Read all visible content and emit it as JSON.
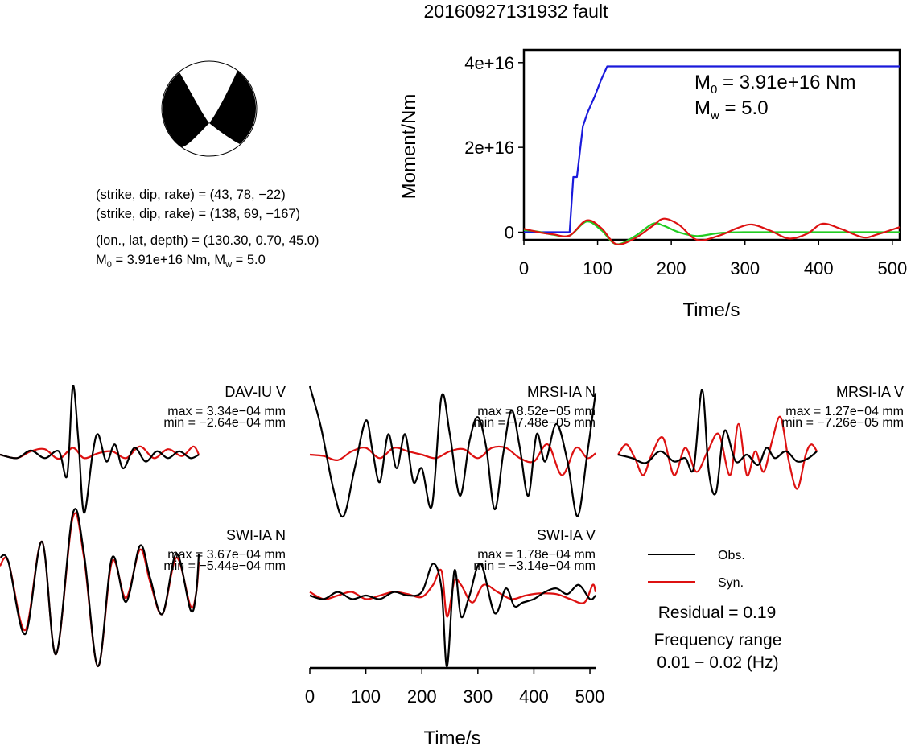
{
  "title": "20160927131932 fault",
  "info": {
    "line1": "(strike, dip, rake) = (43, 78, −22)",
    "line2": "(strike, dip, rake) = (138, 69, −167)",
    "line3": "(lon., lat, depth) = (130.30, 0.70, 45.0)",
    "line4": "M0 = 3.91e+16 Nm, Mw = 5.0"
  },
  "colors": {
    "obs": "#000000",
    "syn": "#dd1111",
    "moment": "#1a1adb",
    "green": "#22cc22"
  },
  "chart_data": [
    {
      "id": "moment",
      "type": "line",
      "ylabel": "Moment/Nm",
      "xlabel": "Time/s",
      "xlim": [
        0,
        510
      ],
      "ylim": [
        -1800000000000000.0,
        4.3e+16
      ],
      "xticks": [
        "0",
        "100",
        "200",
        "300",
        "400",
        "500"
      ],
      "yticks": [
        "0",
        "2e+16",
        "4e+16"
      ],
      "annotations": [
        "M0 = 3.91e+16 Nm",
        "Mw = 5.0"
      ],
      "series": [
        {
          "color": "blue",
          "x": [
            0,
            62,
            67,
            72,
            80,
            87,
            96,
            105,
            113,
            120,
            510
          ],
          "y": [
            0,
            0,
            1.3e+16,
            1.3e+16,
            2.5e+16,
            2.85e+16,
            3.2e+16,
            3.6e+16,
            3.91e+16,
            3.91e+16,
            3.91e+16
          ]
        },
        {
          "color": "green",
          "x": [
            0,
            20,
            40,
            62,
            85,
            105,
            125,
            150,
            175,
            190,
            210,
            235,
            265,
            300,
            350,
            400,
            450,
            510
          ],
          "y": [
            500000000000000.0,
            100000000000000.0,
            -600000000000000.0,
            -800000000000000.0,
            2500000000000000.0,
            500000000000000.0,
            -2800000000000000.0,
            -1000000000000000.0,
            2000000000000000.0,
            1500000000000000.0,
            0.0,
            -900000000000000.0,
            -200000000000000.0,
            0.0,
            0.0,
            0.0,
            0.0,
            0.0
          ]
        },
        {
          "color": "red",
          "x": [
            0,
            20,
            40,
            62,
            85,
            105,
            125,
            150,
            175,
            190,
            210,
            235,
            265,
            290,
            310,
            335,
            360,
            385,
            405,
            430,
            460,
            480,
            510
          ],
          "y": [
            800000000000000.0,
            0.0,
            -500000000000000.0,
            -800000000000000.0,
            2800000000000000.0,
            1000000000000000.0,
            -2800000000000000.0,
            -1500000000000000.0,
            1500000000000000.0,
            3200000000000000.0,
            1800000000000000.0,
            -1800000000000000.0,
            -800000000000000.0,
            1000000000000000.0,
            1800000000000000.0,
            300000000000000.0,
            -1500000000000000.0,
            -300000000000000.0,
            2000000000000000.0,
            800000000000000.0,
            -1200000000000000.0,
            -500000000000000.0,
            1200000000000000.0
          ]
        }
      ]
    },
    {
      "id": "waveforms",
      "type": "line",
      "xlabel": "Time/s",
      "xlim": [
        0,
        510
      ],
      "xticks": [
        "0",
        "100",
        "200",
        "300",
        "400",
        "500"
      ],
      "panels": [
        {
          "station": "DAV-IU V",
          "max": "max = 3.34e−04 mm",
          "min": "min = −2.64e−04 mm",
          "obs": {
            "x": [
              0,
              30,
              55,
              80,
              105,
              120,
              130,
              140,
              150,
              165,
              175,
              190,
              205,
              220,
              240,
              260,
              280,
              300,
              320,
              340,
              355
            ],
            "y": [
              0,
              -0.05,
              0.06,
              -0.05,
              0.05,
              -0.3,
              1.0,
              0.2,
              -0.85,
              0.0,
              0.3,
              -0.1,
              0.15,
              -0.2,
              0.1,
              -0.1,
              0.05,
              -0.05,
              0.05,
              -0.05,
              0
            ]
          },
          "syn": {
            "x": [
              0,
              30,
              55,
              80,
              105,
              130,
              150,
              175,
              200,
              225,
              250,
              275,
              300,
              325,
              345,
              355
            ],
            "y": [
              0,
              -0.05,
              0.05,
              0.08,
              -0.06,
              0.1,
              -0.05,
              0.02,
              0.05,
              -0.05,
              0.12,
              -0.05,
              0.08,
              -0.02,
              0.12,
              0
            ]
          }
        },
        {
          "station": "MRSI-IA N",
          "max": "max = 8.52e−05 mm",
          "min": "min = −7.48e−05 mm",
          "obs": {
            "x": [
              0,
              20,
              42,
              60,
              80,
              100,
              112,
              125,
              140,
              155,
              170,
              185,
              200,
              218,
              235,
              250,
              268,
              285,
              300,
              315,
              330,
              345,
              360,
              375,
              390,
              405,
              420,
              440,
              460,
              478,
              495,
              510
            ],
            "y": [
              1.0,
              0.4,
              -0.5,
              -0.9,
              -0.2,
              0.5,
              0.05,
              -0.4,
              0.3,
              -0.2,
              0.3,
              -0.4,
              -0.2,
              -0.75,
              0.85,
              0.3,
              -0.6,
              0.2,
              0.55,
              0.1,
              -0.8,
              0.0,
              0.65,
              0.1,
              -0.6,
              0.3,
              -0.1,
              0.45,
              -0.1,
              -0.9,
              0.0,
              0.9
            ]
          },
          "syn": {
            "x": [
              0,
              25,
              50,
              75,
              100,
              125,
              150,
              175,
              200,
              225,
              250,
              275,
              300,
              325,
              350,
              375,
              400,
              425,
              450,
              475,
              495,
              510
            ],
            "y": [
              0,
              -0.02,
              -0.08,
              0.05,
              0.1,
              -0.05,
              0.1,
              0.05,
              0.0,
              -0.05,
              0.05,
              0.08,
              -0.05,
              0.1,
              0.1,
              -0.05,
              -0.1,
              0.15,
              -0.3,
              0.1,
              -0.05,
              0.02
            ]
          }
        },
        {
          "station": "MRSI-IA V",
          "max": "max = 1.27e−04 mm",
          "min": "min = −7.26e−05 mm",
          "obs": {
            "x": [
              0,
              25,
              50,
              75,
              100,
              120,
              135,
              150,
              162,
              175,
              190,
              210,
              230,
              250,
              265,
              280,
              300,
              320,
              340,
              355
            ],
            "y": [
              0,
              -0.05,
              -0.12,
              0.05,
              -0.1,
              -0.05,
              -0.2,
              0.95,
              -0.25,
              -0.55,
              0.35,
              -0.1,
              0.0,
              -0.15,
              0.1,
              -0.05,
              0.05,
              -0.1,
              -0.05,
              0.05
            ]
          },
          "syn": {
            "x": [
              0,
              15,
              30,
              45,
              60,
              80,
              100,
              120,
              140,
              160,
              180,
              200,
              215,
              230,
              245,
              260,
              275,
              290,
              305,
              320,
              335,
              345,
              355
            ],
            "y": [
              0,
              0.15,
              -0.05,
              -0.3,
              0.0,
              0.25,
              -0.3,
              0.1,
              -0.25,
              0.05,
              0.3,
              -0.3,
              0.45,
              -0.3,
              0.05,
              -0.25,
              0.2,
              0.55,
              -0.1,
              -0.5,
              0.0,
              0.15,
              0.05
            ]
          }
        },
        {
          "station": "SWI-IA N",
          "max": "max = 3.67e−04 mm",
          "min": "min = −5.44e−04 mm",
          "obs": {
            "x": [
              0,
              15,
              45,
              75,
              100,
              130,
              150,
              175,
              200,
              225,
              250,
              268,
              290,
              315,
              340,
              350,
              355
            ],
            "y": [
              0.35,
              0.3,
              -0.6,
              0.55,
              -0.85,
              0.9,
              0.4,
              -1.0,
              0.35,
              -0.2,
              0.5,
              0.1,
              -0.35,
              0.4,
              -0.3,
              -0.1,
              0.4
            ]
          },
          "syn": {
            "x": [
              0,
              15,
              45,
              75,
              100,
              130,
              150,
              175,
              200,
              225,
              250,
              268,
              290,
              315,
              340,
              350,
              355
            ],
            "y": [
              0.25,
              0.3,
              -0.55,
              0.55,
              -0.85,
              0.85,
              0.35,
              -1.0,
              0.3,
              -0.15,
              0.45,
              0.05,
              -0.35,
              0.35,
              -0.25,
              -0.1,
              0.3
            ]
          }
        },
        {
          "station": "SWI-IA V",
          "max": "max = 1.78e−04 mm",
          "min": "min = −3.14e−04 mm",
          "obs": {
            "x": [
              0,
              25,
              50,
              75,
              100,
              125,
              150,
              175,
              200,
              220,
              235,
              245,
              258,
              270,
              285,
              305,
              330,
              350,
              365,
              380,
              400,
              420,
              440,
              460,
              480,
              500,
              510
            ],
            "y": [
              0,
              -0.05,
              0.05,
              -0.05,
              0.0,
              -0.05,
              0.05,
              0.0,
              0.05,
              0.45,
              0.1,
              -1.0,
              0.35,
              -0.3,
              0.0,
              0.45,
              -0.25,
              0.1,
              -0.15,
              -0.1,
              -0.05,
              0.05,
              0.1,
              0.02,
              0.15,
              -0.05,
              0.0
            ]
          },
          "syn": {
            "x": [
              0,
              25,
              50,
              75,
              100,
              125,
              150,
              175,
              200,
              220,
              235,
              245,
              258,
              270,
              290,
              310,
              335,
              360,
              385,
              410,
              440,
              465,
              490,
              505,
              510
            ],
            "y": [
              0.05,
              -0.05,
              0.0,
              0.05,
              -0.05,
              0.0,
              0.05,
              0.02,
              -0.02,
              0.15,
              0.35,
              -0.3,
              0.2,
              0.15,
              -0.1,
              0.15,
              0.05,
              -0.05,
              0.0,
              0.03,
              0.02,
              -0.05,
              -0.1,
              0.15,
              0.05
            ]
          }
        }
      ]
    }
  ],
  "legend": {
    "obs": "Obs.",
    "syn": "Syn."
  },
  "residual": "Residual = 0.19",
  "freq_label": "Frequency range",
  "freq_value": "0.01 − 0.02 (Hz)"
}
